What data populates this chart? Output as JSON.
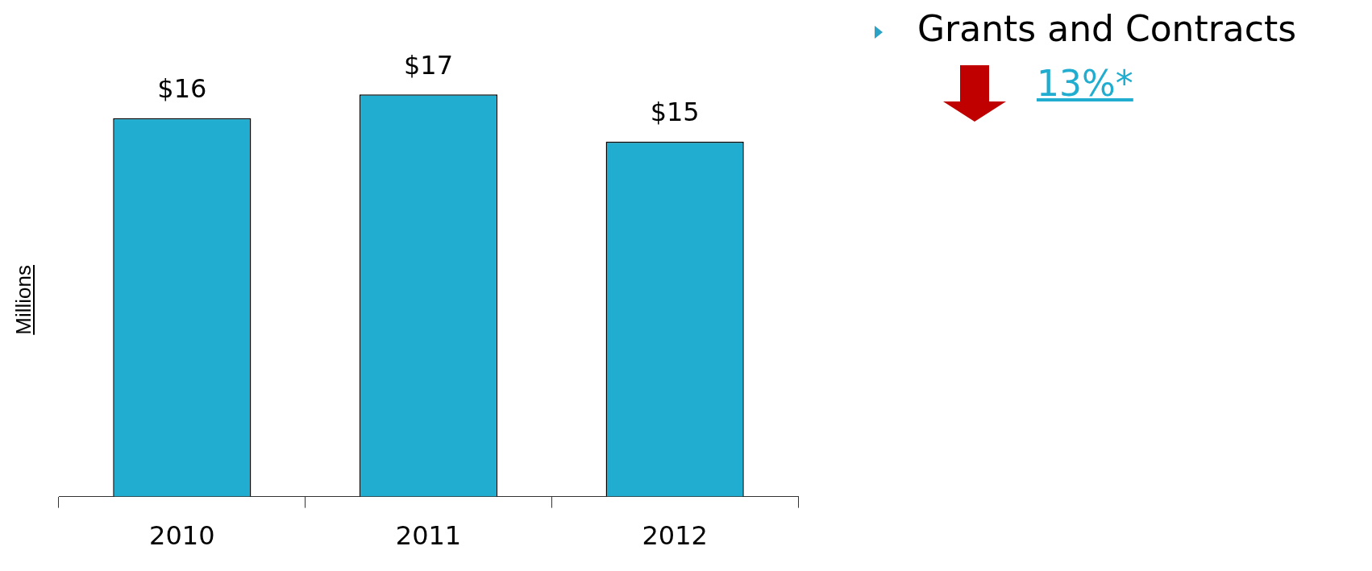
{
  "chart_data": {
    "type": "bar",
    "ylabel": "Millions",
    "categories": [
      "2010",
      "2011",
      "2012"
    ],
    "values": [
      16,
      17,
      15
    ],
    "value_labels": [
      "$16",
      "$17",
      "$15"
    ],
    "color": "#21adcf",
    "tick_labels": "x",
    "grid": false,
    "legend": false,
    "annotations": [
      "Grants and Contracts",
      "13%*"
    ]
  }
}
